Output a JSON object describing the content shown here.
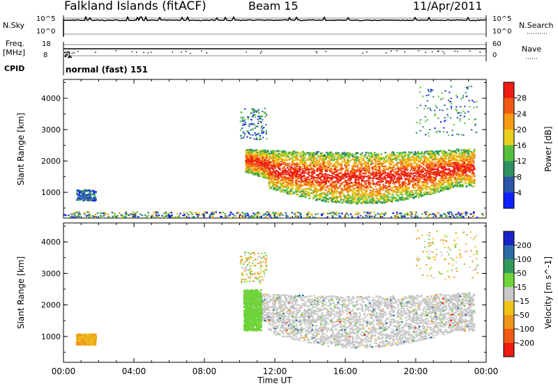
{
  "header": {
    "station": "Falkland Islands (fitACF)",
    "beam": "Beam 15",
    "date": "11/Apr/2011"
  },
  "strip_labels": {
    "nsky": "N.Sky",
    "nsky_tick_top": "10^5",
    "nsky_tick_bottom": "10^0",
    "nsearch": "N.Search",
    "nsearch_tick_top": "10^5",
    "nsearch_tick_bottom": "10^0",
    "freq_line1": "Freq.",
    "freq_line2": "[MHz]",
    "freq_tick_top": "18",
    "freq_tick_bottom": "8",
    "nave": "Nave",
    "nave_tick_top": "60",
    "nave_tick_bottom": "0",
    "cpid": "CPID",
    "cpid_value": "normal (fast) 151"
  },
  "chart_data": [
    {
      "type": "heatmap",
      "title": "",
      "ylabel": "Slant Range [km]",
      "xlabel": "",
      "ylim": [
        180,
        4600
      ],
      "yticks": [
        "1000",
        "2000",
        "3000",
        "4000"
      ],
      "colorbar": {
        "label": "Power [dB]",
        "ticks": [
          "4",
          "8",
          "12",
          "16",
          "20",
          "24",
          "28"
        ],
        "colors": [
          "#1020ff",
          "#2a55a8",
          "#2e8f5f",
          "#56c03c",
          "#e8cf1c",
          "#f59a13",
          "#f05a12",
          "#ee1b12"
        ]
      },
      "regions": [
        {
          "name": "main echo band",
          "t_start_h": 10.3,
          "t_end_h": 23.3,
          "range_min_km": 600,
          "range_max_km": 2600,
          "power_db": 24
        },
        {
          "name": "early patch",
          "t_start_h": 0.7,
          "t_end_h": 1.8,
          "range_min_km": 750,
          "range_max_km": 1100,
          "power_db": 8
        },
        {
          "name": "near-range ground scatter",
          "t_start_h": 0.0,
          "t_end_h": 24.0,
          "range_min_km": 180,
          "range_max_km": 400,
          "power_db": 6
        }
      ]
    },
    {
      "type": "heatmap",
      "title": "",
      "ylabel": "Slant Range [km]",
      "xlabel": "Time UT",
      "ylim": [
        180,
        4600
      ],
      "yticks": [
        "1000",
        "2000",
        "3000",
        "4000"
      ],
      "xticks": [
        "00:00",
        "04:00",
        "08:00",
        "12:00",
        "16:00",
        "20:00",
        "00:00"
      ],
      "colorbar": {
        "label": "Velocity [m s^-1]",
        "ticks": [
          "200",
          "100",
          "50",
          "15",
          "-15",
          "-50",
          "-100",
          "-200"
        ],
        "colors": [
          "#1a22c8",
          "#2a6aa8",
          "#2f9b5a",
          "#6fd33a",
          "#c8c8c8",
          "#f0c419",
          "#f0951a",
          "#f05a12",
          "#ee1b12"
        ]
      },
      "regions": [
        {
          "name": "ground scatter band",
          "t_start_h": 10.3,
          "t_end_h": 23.3,
          "range_min_km": 600,
          "range_max_km": 2600,
          "velocity_ms": 0
        },
        {
          "name": "positive velocity edge",
          "t_start_h": 10.2,
          "t_end_h": 11.2,
          "range_min_km": 1200,
          "range_max_km": 2500,
          "velocity_ms": 30
        },
        {
          "name": "early patch",
          "t_start_h": 0.7,
          "t_end_h": 1.8,
          "range_min_km": 750,
          "range_max_km": 1100,
          "velocity_ms": -40
        }
      ]
    }
  ]
}
